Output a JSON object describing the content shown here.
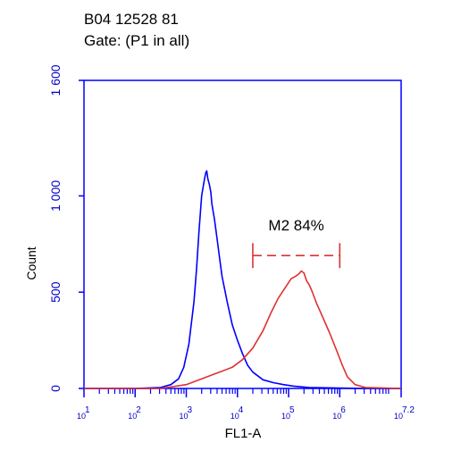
{
  "chart_data": {
    "type": "line",
    "title": [
      "B04 12528 81",
      "Gate: (P1 in all)"
    ],
    "xlabel": "FL1-A",
    "ylabel": "Count",
    "xscale": "log",
    "xlim": [
      1,
      7.2
    ],
    "ylim": [
      0,
      1600
    ],
    "y_ticks": [
      {
        "value": 0,
        "label": "0"
      },
      {
        "value": 500,
        "label": "500"
      },
      {
        "value": 1000,
        "label": "1 000"
      },
      {
        "value": 1600,
        "label": "1 600"
      }
    ],
    "x_ticks": [
      {
        "value": 1,
        "base": "10",
        "exp": "1"
      },
      {
        "value": 2,
        "base": "10",
        "exp": "2"
      },
      {
        "value": 3,
        "base": "10",
        "exp": "3"
      },
      {
        "value": 4,
        "base": "10",
        "exp": "4"
      },
      {
        "value": 5,
        "base": "10",
        "exp": "5"
      },
      {
        "value": 6,
        "base": "10",
        "exp": "6"
      },
      {
        "value": 7.2,
        "base": "10",
        "exp": "7.2"
      }
    ],
    "marker": {
      "label": "M2 84%",
      "x_start": 4.3,
      "x_end": 6.0,
      "y": 690,
      "color": "#e03030"
    },
    "series": [
      {
        "color": "#0000ff",
        "x": [
          1.0,
          1.5,
          2.0,
          2.5,
          2.7,
          2.85,
          2.95,
          3.05,
          3.15,
          3.2,
          3.25,
          3.3,
          3.35,
          3.38,
          3.4,
          3.42,
          3.45,
          3.48,
          3.5,
          3.55,
          3.6,
          3.65,
          3.7,
          3.8,
          3.9,
          4.0,
          4.1,
          4.2,
          4.3,
          4.5,
          4.7,
          4.9,
          5.1,
          5.4,
          6.0,
          6.5,
          7.2
        ],
        "y": [
          0,
          0,
          0,
          5,
          20,
          50,
          110,
          230,
          450,
          620,
          820,
          1000,
          1080,
          1120,
          1130,
          1090,
          1060,
          1020,
          960,
          880,
          780,
          680,
          580,
          450,
          330,
          250,
          180,
          120,
          85,
          45,
          30,
          20,
          12,
          5,
          2,
          0,
          0
        ]
      },
      {
        "color": "#e03030",
        "x": [
          1.0,
          2.5,
          3.0,
          3.3,
          3.6,
          3.9,
          4.1,
          4.3,
          4.5,
          4.65,
          4.8,
          4.95,
          5.05,
          5.15,
          5.2,
          5.25,
          5.3,
          5.35,
          5.4,
          5.45,
          5.55,
          5.65,
          5.8,
          5.95,
          6.05,
          6.15,
          6.3,
          6.5,
          7.2
        ],
        "y": [
          0,
          0,
          20,
          50,
          80,
          110,
          150,
          210,
          300,
          390,
          470,
          530,
          570,
          585,
          595,
          610,
          600,
          560,
          540,
          510,
          440,
          380,
          290,
          190,
          120,
          60,
          20,
          5,
          0
        ]
      }
    ]
  }
}
